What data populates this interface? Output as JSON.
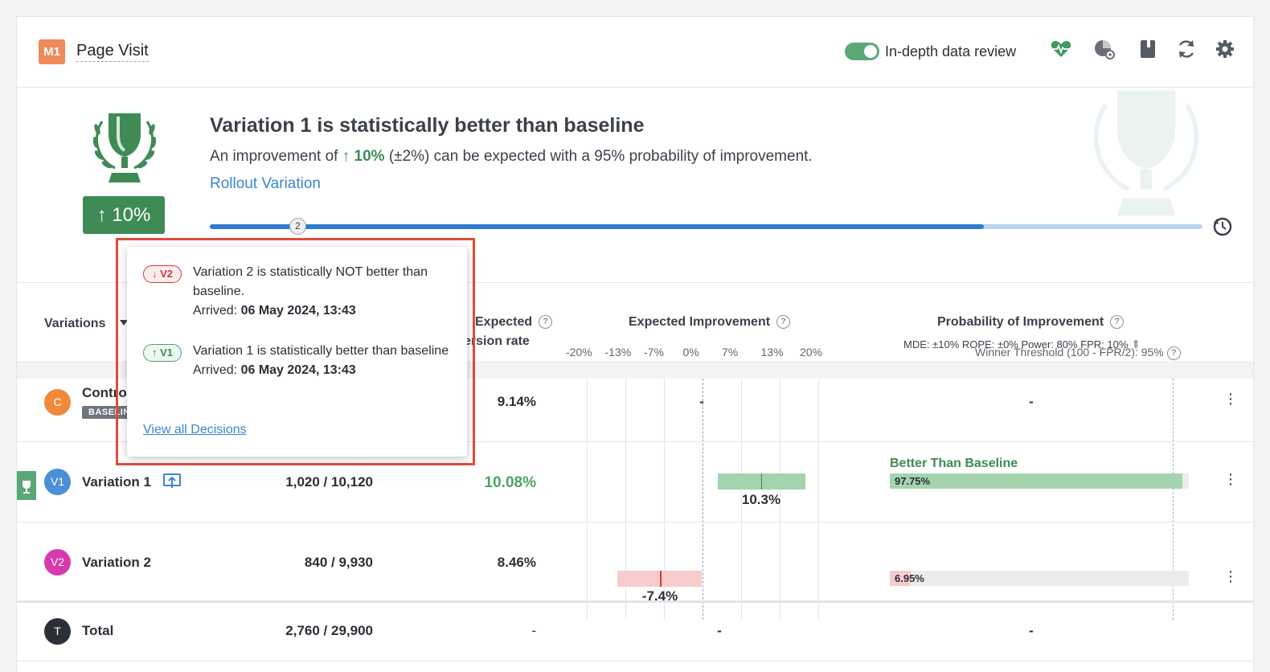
{
  "header": {
    "metric_badge": "M1",
    "metric_name": "Page Visit",
    "toggle_label": "In-depth data review",
    "icons": [
      "heart-pulse-icon",
      "pie-gear-icon",
      "book-icon",
      "refresh-icon",
      "gear-icon"
    ]
  },
  "banner": {
    "title": "Variation 1 is statistically better than baseline",
    "sub_prefix": "An improvement of ",
    "sub_value": "↑ 10%",
    "sub_suffix": " (±2%) can be expected with a 95% probability of improvement.",
    "link": "Rollout Variation",
    "pill": "↑ 10%",
    "progress_fraction": 0.78,
    "progress_marker": "2"
  },
  "table_header": {
    "variations": "Variations",
    "expected_rate_line1": "Expected",
    "expected_rate_line2": "ersion rate",
    "expected_improvement": "Expected Improvement",
    "probability": "Probability of Improvement",
    "mde_line": "MDE: ±10%  ROPE: ±0%  Power: 80%  FPR: 10%",
    "ticks": [
      "-20%",
      "-13%",
      "-7%",
      "0%",
      "7%",
      "13%",
      "20%"
    ],
    "winner_threshold": "Winner Threshold (100 - FPR/2): 95%"
  },
  "rows": [
    {
      "avatar": "C",
      "name": "Contro",
      "tag": "BASELIN",
      "conversions": "",
      "rate": "9.14%",
      "improvement": "-",
      "probability": "-"
    },
    {
      "avatar": "V1",
      "name": "Variation 1",
      "conversions": "1,020 / 10,120",
      "rate": "10.08%",
      "improvement": "10.3%",
      "prob_label": "Better Than Baseline",
      "probability": "97.75%"
    },
    {
      "avatar": "V2",
      "name": "Variation 2",
      "conversions": "840 / 9,930",
      "rate": "8.46%",
      "improvement": "-7.4%",
      "probability": "6.95%"
    },
    {
      "avatar": "T",
      "name": "Total",
      "conversions": "2,760 / 29,900",
      "rate": "-",
      "improvement": "-",
      "probability": "-"
    }
  ],
  "tooltip": {
    "items": [
      {
        "badge": "↓ V2",
        "text": "Variation 2 is statistically NOT better than baseline.",
        "arrived_label": "Arrived: ",
        "arrived": "06 May 2024, 13:43"
      },
      {
        "badge": "↑ V1",
        "text": "Variation 1 is statistically better than baseline",
        "arrived_label": "Arrived: ",
        "arrived": "06 May 2024, 13:43"
      }
    ],
    "link": "View all Decisions"
  },
  "colors": {
    "accent_blue": "#2f7bd0",
    "green": "#3f8b55",
    "red": "#d63a3a",
    "highlight_outline": "#e34a3a"
  }
}
